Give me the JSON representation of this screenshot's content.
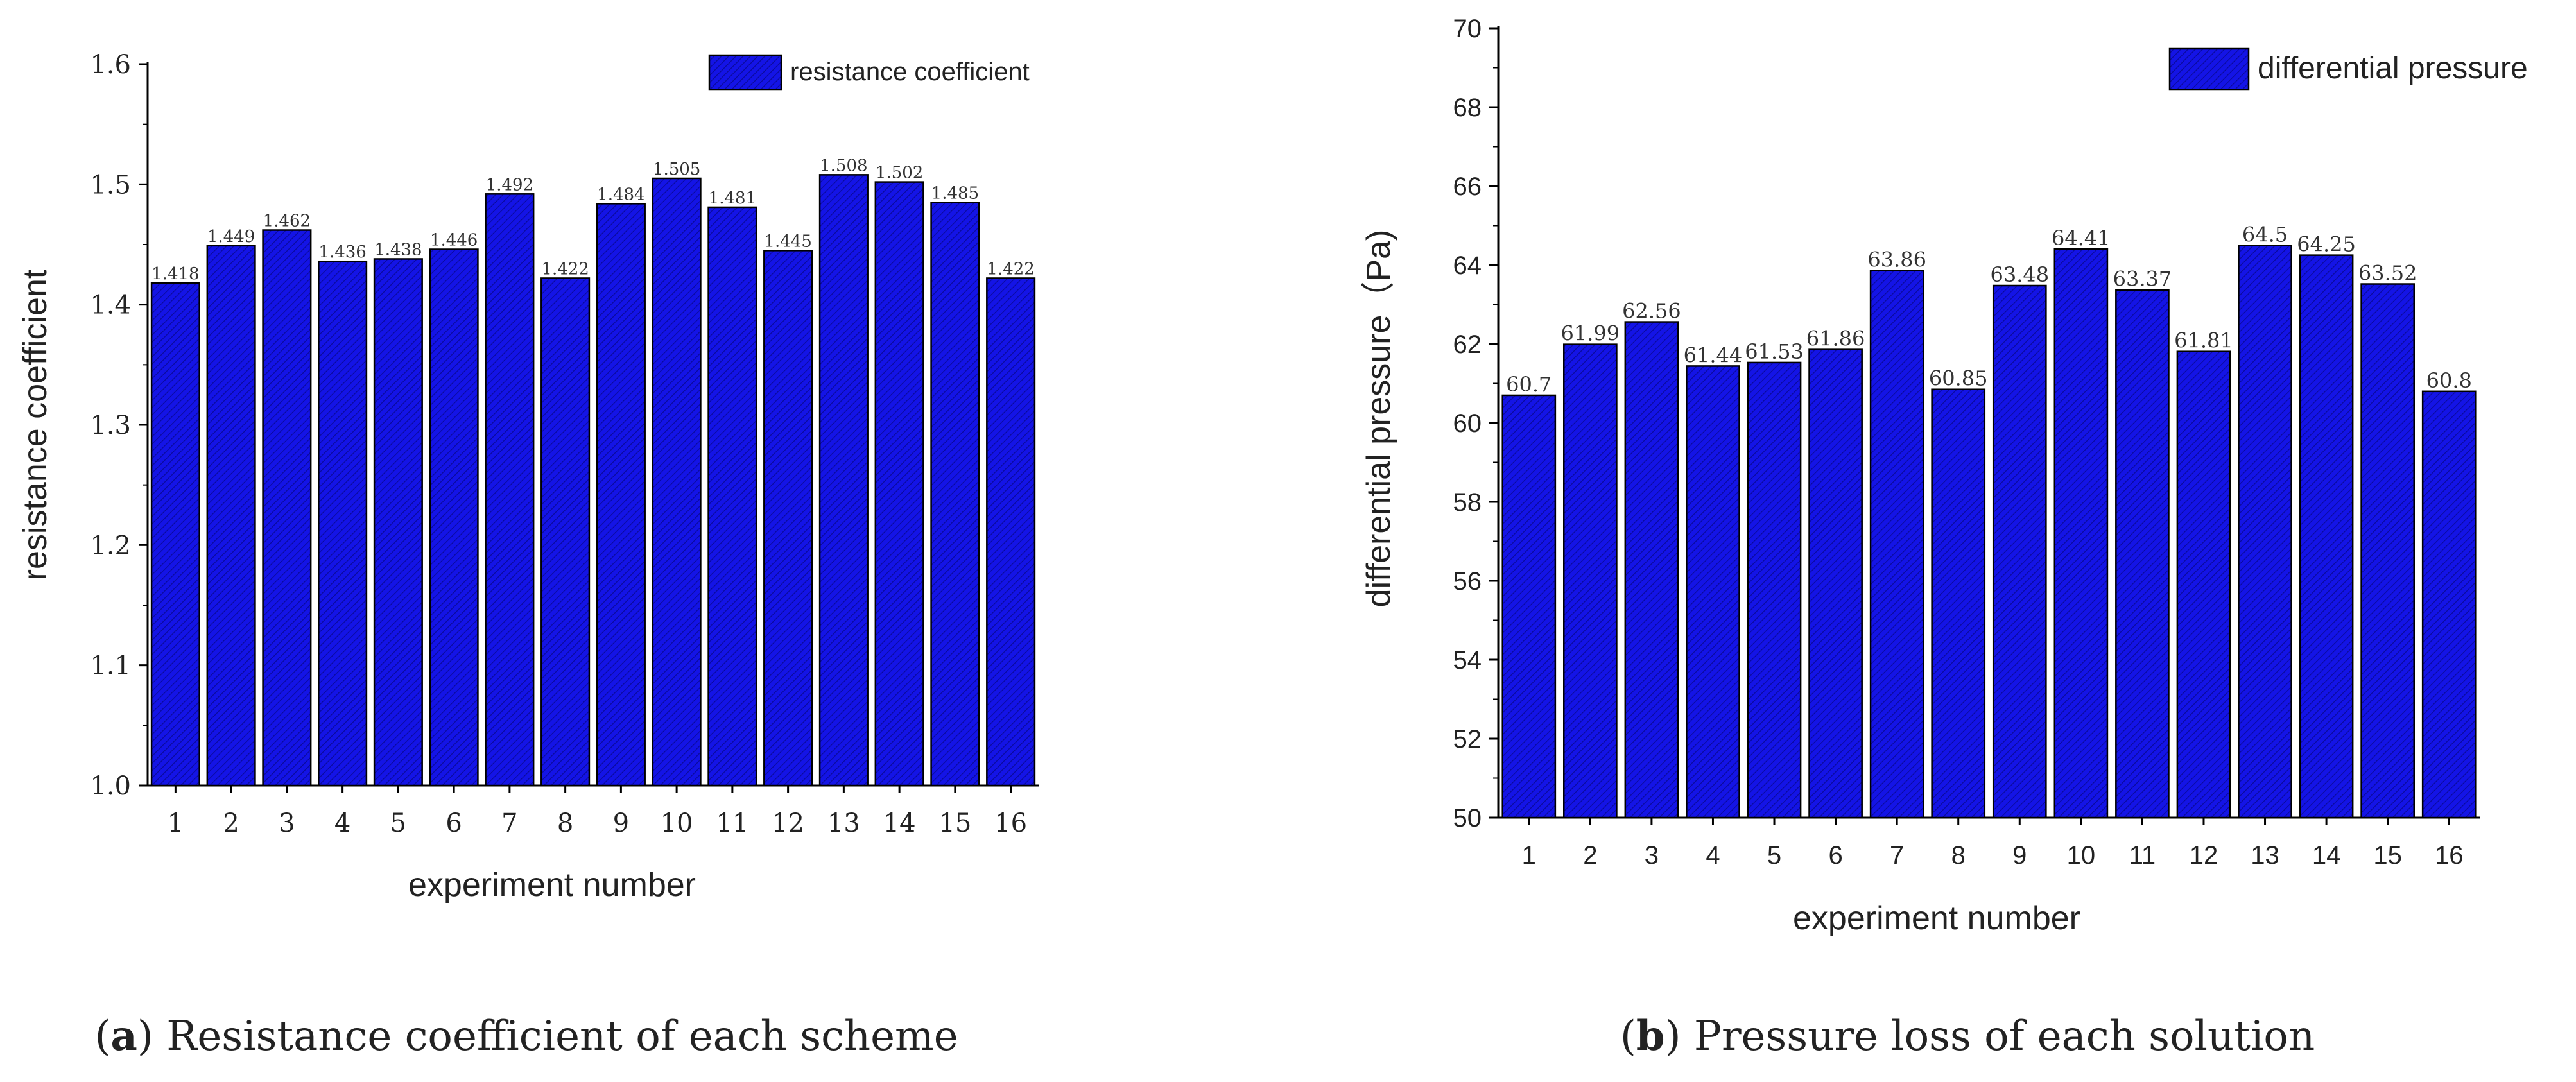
{
  "colors": {
    "bar": "#1414e6",
    "bar_hatch": "#0a0a9a",
    "axis": "#000000",
    "text": "#222222"
  },
  "chart_data": [
    {
      "type": "bar",
      "panel_label": "a",
      "caption_text": ") Resistance coefficient of each scheme",
      "xlabel": "experiment number",
      "ylabel": "resistance coefficient",
      "legend": "resistance coefficient",
      "legend_position": "top-right",
      "ylim": [
        1.0,
        1.6
      ],
      "yticks": [
        "1.0",
        "1.1",
        "1.2",
        "1.3",
        "1.4",
        "1.5",
        "1.6"
      ],
      "categories": [
        "1",
        "2",
        "3",
        "4",
        "5",
        "6",
        "7",
        "8",
        "9",
        "10",
        "11",
        "12",
        "13",
        "14",
        "15",
        "16"
      ],
      "values": [
        1.418,
        1.449,
        1.462,
        1.436,
        1.438,
        1.446,
        1.492,
        1.422,
        1.484,
        1.505,
        1.481,
        1.445,
        1.508,
        1.502,
        1.485,
        1.422
      ],
      "labels": [
        "1.418",
        "1.449",
        "1.462",
        "1.436",
        "1.438",
        "1.446",
        "1.492",
        "1.422",
        "1.484",
        "1.505",
        "1.481",
        "1.445",
        "1.508",
        "1.502",
        "1.485",
        "1.422"
      ],
      "grid": false
    },
    {
      "type": "bar",
      "panel_label": "b",
      "caption_text": ") Pressure loss of each solution",
      "xlabel": "experiment number",
      "ylabel": "differential pressure（Pa)",
      "legend": "differential pressure",
      "legend_position": "top-right",
      "ylim": [
        50,
        70
      ],
      "yticks": [
        "50",
        "52",
        "54",
        "56",
        "58",
        "60",
        "62",
        "64",
        "66",
        "68",
        "70"
      ],
      "categories": [
        "1",
        "2",
        "3",
        "4",
        "5",
        "6",
        "7",
        "8",
        "9",
        "10",
        "11",
        "12",
        "13",
        "14",
        "15",
        "16"
      ],
      "values": [
        60.7,
        61.99,
        62.56,
        61.44,
        61.53,
        61.86,
        63.86,
        60.85,
        63.48,
        64.41,
        63.37,
        61.81,
        64.5,
        64.25,
        63.52,
        60.8
      ],
      "labels": [
        "60.7",
        "61.99",
        "62.56",
        "61.44",
        "61.53",
        "61.86",
        "63.86",
        "60.85",
        "63.48",
        "64.41",
        "63.37",
        "61.81",
        "64.5",
        "64.25",
        "63.52",
        "60.8"
      ],
      "grid": false
    }
  ]
}
